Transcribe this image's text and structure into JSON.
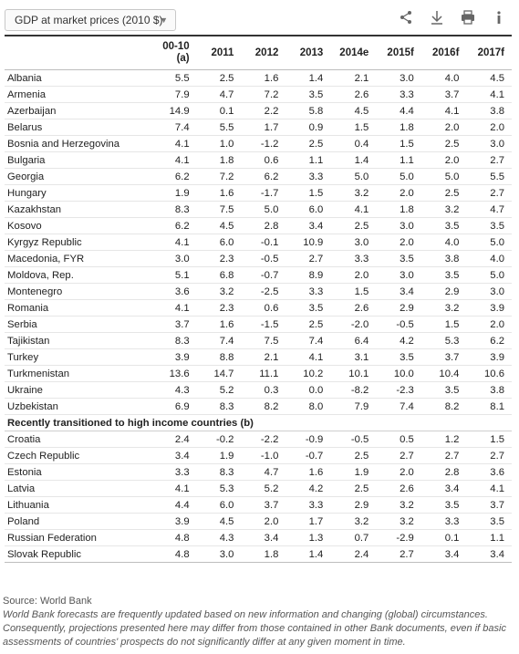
{
  "toolbar": {
    "dropdown_label": "GDP at market prices (2010 $)",
    "icons": [
      "share-icon",
      "download-icon",
      "print-icon",
      "info-icon"
    ]
  },
  "table": {
    "headers": [
      "",
      "00-10 (a)",
      "2011",
      "2012",
      "2013",
      "2014e",
      "2015f",
      "2016f",
      "2017f"
    ],
    "rows": [
      [
        "Albania",
        "5.5",
        "2.5",
        "1.6",
        "1.4",
        "2.1",
        "3.0",
        "4.0",
        "4.5"
      ],
      [
        "Armenia",
        "7.9",
        "4.7",
        "7.2",
        "3.5",
        "2.6",
        "3.3",
        "3.7",
        "4.1"
      ],
      [
        "Azerbaijan",
        "14.9",
        "0.1",
        "2.2",
        "5.8",
        "4.5",
        "4.4",
        "4.1",
        "3.8"
      ],
      [
        "Belarus",
        "7.4",
        "5.5",
        "1.7",
        "0.9",
        "1.5",
        "1.8",
        "2.0",
        "2.0"
      ],
      [
        "Bosnia and Herzegovina",
        "4.1",
        "1.0",
        "-1.2",
        "2.5",
        "0.4",
        "1.5",
        "2.5",
        "3.0"
      ],
      [
        "Bulgaria",
        "4.1",
        "1.8",
        "0.6",
        "1.1",
        "1.4",
        "1.1",
        "2.0",
        "2.7"
      ],
      [
        "Georgia",
        "6.2",
        "7.2",
        "6.2",
        "3.3",
        "5.0",
        "5.0",
        "5.0",
        "5.5"
      ],
      [
        "Hungary",
        "1.9",
        "1.6",
        "-1.7",
        "1.5",
        "3.2",
        "2.0",
        "2.5",
        "2.7"
      ],
      [
        "Kazakhstan",
        "8.3",
        "7.5",
        "5.0",
        "6.0",
        "4.1",
        "1.8",
        "3.2",
        "4.7"
      ],
      [
        "Kosovo",
        "6.2",
        "4.5",
        "2.8",
        "3.4",
        "2.5",
        "3.0",
        "3.5",
        "3.5"
      ],
      [
        "Kyrgyz Republic",
        "4.1",
        "6.0",
        "-0.1",
        "10.9",
        "3.0",
        "2.0",
        "4.0",
        "5.0"
      ],
      [
        "Macedonia, FYR",
        "3.0",
        "2.3",
        "-0.5",
        "2.7",
        "3.3",
        "3.5",
        "3.8",
        "4.0"
      ],
      [
        "Moldova, Rep.",
        "5.1",
        "6.8",
        "-0.7",
        "8.9",
        "2.0",
        "3.0",
        "3.5",
        "5.0"
      ],
      [
        "Montenegro",
        "3.6",
        "3.2",
        "-2.5",
        "3.3",
        "1.5",
        "3.4",
        "2.9",
        "3.0"
      ],
      [
        "Romania",
        "4.1",
        "2.3",
        "0.6",
        "3.5",
        "2.6",
        "2.9",
        "3.2",
        "3.9"
      ],
      [
        "Serbia",
        "3.7",
        "1.6",
        "-1.5",
        "2.5",
        "-2.0",
        "-0.5",
        "1.5",
        "2.0"
      ],
      [
        "Tajikistan",
        "8.3",
        "7.4",
        "7.5",
        "7.4",
        "6.4",
        "4.2",
        "5.3",
        "6.2"
      ],
      [
        "Turkey",
        "3.9",
        "8.8",
        "2.1",
        "4.1",
        "3.1",
        "3.5",
        "3.7",
        "3.9"
      ],
      [
        "Turkmenistan",
        "13.6",
        "14.7",
        "11.1",
        "10.2",
        "10.1",
        "10.0",
        "10.4",
        "10.6"
      ],
      [
        "Ukraine",
        "4.3",
        "5.2",
        "0.3",
        "0.0",
        "-8.2",
        "-2.3",
        "3.5",
        "3.8"
      ],
      [
        "Uzbekistan",
        "6.9",
        "8.3",
        "8.2",
        "8.0",
        "7.9",
        "7.4",
        "8.2",
        "8.1"
      ]
    ],
    "section_label": "Recently transitioned to high income countries (b)",
    "section_rows": [
      [
        "Croatia",
        "2.4",
        "-0.2",
        "-2.2",
        "-0.9",
        "-0.5",
        "0.5",
        "1.2",
        "1.5"
      ],
      [
        "Czech Republic",
        "3.4",
        "1.9",
        "-1.0",
        "-0.7",
        "2.5",
        "2.7",
        "2.7",
        "2.7"
      ],
      [
        "Estonia",
        "3.3",
        "8.3",
        "4.7",
        "1.6",
        "1.9",
        "2.0",
        "2.8",
        "3.6"
      ],
      [
        "Latvia",
        "4.1",
        "5.3",
        "5.2",
        "4.2",
        "2.5",
        "2.6",
        "3.4",
        "4.1"
      ],
      [
        "Lithuania",
        "4.4",
        "6.0",
        "3.7",
        "3.3",
        "2.9",
        "3.2",
        "3.5",
        "3.7"
      ],
      [
        "Poland",
        "3.9",
        "4.5",
        "2.0",
        "1.7",
        "3.2",
        "3.2",
        "3.3",
        "3.5"
      ],
      [
        "Russian Federation",
        "4.8",
        "4.3",
        "3.4",
        "1.3",
        "0.7",
        "-2.9",
        "0.1",
        "1.1"
      ],
      [
        "Slovak Republic",
        "4.8",
        "3.0",
        "1.8",
        "1.4",
        "2.4",
        "2.7",
        "3.4",
        "3.4"
      ]
    ]
  },
  "footer": {
    "source": "Source: World Bank",
    "note": "World Bank forecasts are frequently updated based on new information and changing (global) circumstances. Consequently, projections presented here may differ from those contained in other Bank documents, even if basic assessments of countries' prospects do not significantly differ at any given moment in time."
  }
}
